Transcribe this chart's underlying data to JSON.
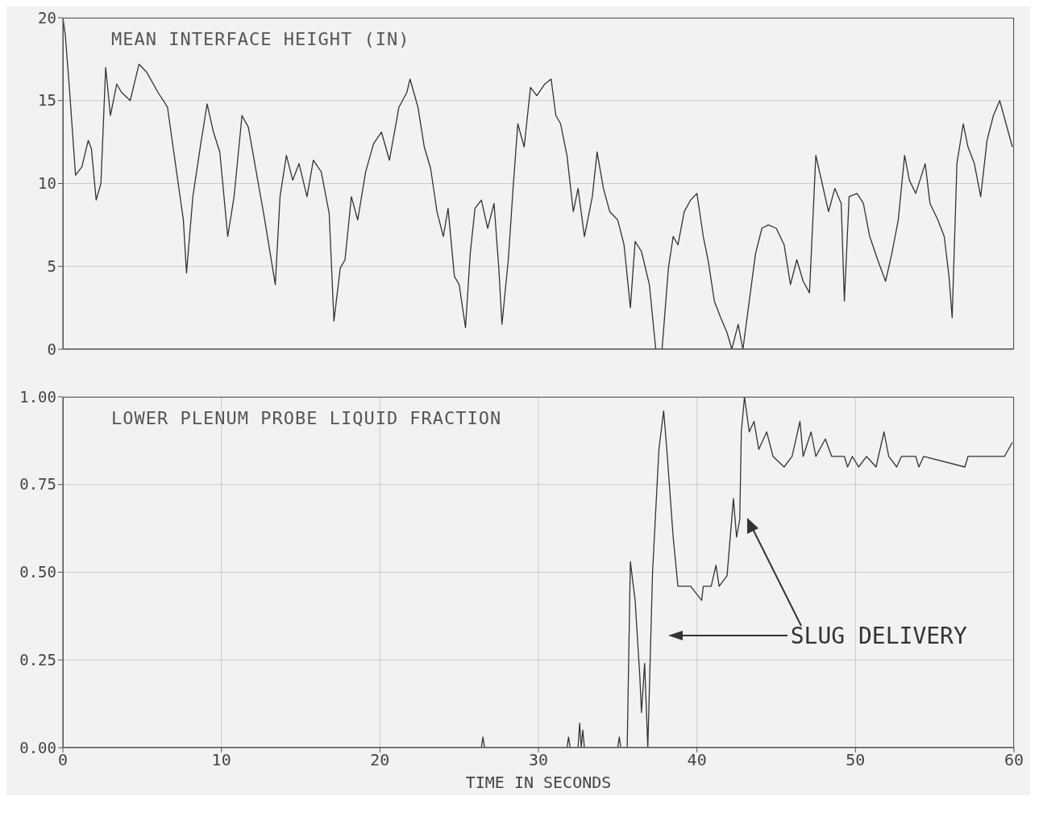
{
  "chart_data": [
    {
      "type": "line",
      "title": "MEAN INTERFACE HEIGHT (IN)",
      "xlim": [
        0,
        60
      ],
      "xticks": [
        0,
        10,
        20,
        30,
        40,
        50,
        60
      ],
      "ylim": [
        0,
        20
      ],
      "yticks": [
        0,
        5,
        10,
        15,
        20
      ],
      "grid": true,
      "tick_labels": "y",
      "line_style": "solid",
      "marker": "none",
      "series": [
        {
          "color": "#333333",
          "x": [
            0,
            0.15,
            0.4,
            0.8,
            1.2,
            1.6,
            1.8,
            2.1,
            2.4,
            2.7,
            3.0,
            3.4,
            3.7,
            4.25,
            4.8,
            5.3,
            6.0,
            6.6,
            7.1,
            7.6,
            7.8,
            8.2,
            8.7,
            9.1,
            9.5,
            9.9,
            10.4,
            10.8,
            11.3,
            11.7,
            12.2,
            12.7,
            13.4,
            13.7,
            14.1,
            14.5,
            14.9,
            15.4,
            15.8,
            16.3,
            16.8,
            17.1,
            17.5,
            17.8,
            18.2,
            18.6,
            19.1,
            19.6,
            20.1,
            20.6,
            21.2,
            21.7,
            21.9,
            22.4,
            22.8,
            23.2,
            23.6,
            24.0,
            24.3,
            24.7,
            25.0,
            25.4,
            25.7,
            26.0,
            26.4,
            26.8,
            27.2,
            27.5,
            27.7,
            28.1,
            28.4,
            28.7,
            29.1,
            29.5,
            29.9,
            30.4,
            30.8,
            31.1,
            31.4,
            31.8,
            32.2,
            32.5,
            32.9,
            33.4,
            33.7,
            34.1,
            34.5,
            35.0,
            35.4,
            35.8,
            36.1,
            36.5,
            37.0,
            37.4,
            37.8,
            38.2,
            38.5,
            38.8,
            39.2,
            39.6,
            40.0,
            40.4,
            40.7,
            41.1,
            41.5,
            41.9,
            42.2,
            42.6,
            42.9,
            43.3,
            43.7,
            44.1,
            44.5,
            45.0,
            45.5,
            45.9,
            46.3,
            46.7,
            47.1,
            47.5,
            47.9,
            48.3,
            48.7,
            49.1,
            49.3,
            49.6,
            50.1,
            50.5,
            50.9,
            51.4,
            51.9,
            52.3,
            52.7,
            53.1,
            53.4,
            53.8,
            54.4,
            54.7,
            55.2,
            55.6,
            55.9,
            56.1,
            56.4,
            56.8,
            57.1,
            57.5,
            57.9,
            58.3,
            58.7,
            59.1,
            59.5,
            59.9
          ],
          "values": [
            20,
            19,
            15.9,
            10.5,
            11,
            12.6,
            12.1,
            9,
            10,
            17,
            14.1,
            16,
            15.5,
            15,
            17.2,
            16.7,
            15.5,
            14.6,
            11.2,
            7.8,
            4.6,
            9.2,
            12.4,
            14.8,
            13.1,
            11.9,
            6.8,
            9.2,
            14.1,
            13.4,
            10.7,
            8,
            3.9,
            9.2,
            11.7,
            10.2,
            11.2,
            9.2,
            11.4,
            10.7,
            8.2,
            1.7,
            4.9,
            5.4,
            9.2,
            7.8,
            10.7,
            12.4,
            13.1,
            11.4,
            14.6,
            15.5,
            16.3,
            14.6,
            12.2,
            10.9,
            8.3,
            6.8,
            8.5,
            4.4,
            3.9,
            1.3,
            5.8,
            8.5,
            9,
            7.3,
            8.8,
            4.9,
            1.5,
            5.4,
            9.7,
            13.6,
            12.2,
            15.8,
            15.3,
            16,
            16.3,
            14.1,
            13.6,
            11.7,
            8.3,
            9.7,
            6.8,
            9.2,
            11.9,
            9.7,
            8.3,
            7.8,
            6.3,
            2.5,
            6.5,
            5.9,
            3.9,
            0,
            0,
            4.9,
            6.8,
            6.3,
            8.3,
            9,
            9.4,
            6.8,
            5.4,
            2.9,
            1.9,
            1,
            0,
            1.5,
            0,
            2.9,
            5.8,
            7.3,
            7.5,
            7.3,
            6.3,
            3.9,
            5.4,
            4.1,
            3.4,
            11.7,
            10,
            8.3,
            9.7,
            8.8,
            2.9,
            9.2,
            9.4,
            8.8,
            6.8,
            5.4,
            4.1,
            5.8,
            7.8,
            11.7,
            10.2,
            9.4,
            11.2,
            8.8,
            7.8,
            6.8,
            4.4,
            1.9,
            11.2,
            13.6,
            12.2,
            11.2,
            9.2,
            12.6,
            14.1,
            15,
            13.6,
            12.2
          ]
        }
      ]
    },
    {
      "type": "line",
      "title": "LOWER PLENUM PROBE LIQUID FRACTION",
      "xlabel": "TIME IN SECONDS",
      "xlim": [
        0,
        60
      ],
      "xticks": [
        0,
        10,
        20,
        30,
        40,
        50,
        60
      ],
      "ylim": [
        0,
        1
      ],
      "yticks": [
        {
          "value": 0,
          "label": "0.00"
        },
        {
          "value": 0.25,
          "label": "0.25"
        },
        {
          "value": 0.5,
          "label": "0.50"
        },
        {
          "value": 0.75,
          "label": "0.75"
        },
        {
          "value": 1,
          "label": "1.00"
        }
      ],
      "grid": true,
      "line_style": "solid",
      "marker": "none",
      "annotations": [
        "SLUG DELIVERY"
      ],
      "series": [
        {
          "color": "#333333",
          "x": [
            0,
            26.4,
            26.5,
            26.6,
            31.8,
            31.9,
            32.0,
            32.5,
            32.6,
            32.7,
            32.8,
            32.9,
            35.0,
            35.1,
            35.2,
            35.6,
            35.8,
            36.1,
            36.4,
            36.5,
            36.7,
            36.9,
            37.2,
            37.6,
            37.9,
            38.1,
            38.5,
            38.8,
            39.6,
            40.3,
            40.4,
            40.9,
            41.2,
            41.4,
            41.9,
            42.3,
            42.5,
            42.7,
            42.8,
            43.0,
            43.3,
            43.6,
            43.9,
            44.4,
            44.8,
            45.5,
            46.0,
            46.5,
            46.7,
            47.2,
            47.5,
            48.1,
            48.5,
            49.3,
            49.5,
            49.8,
            50.2,
            50.7,
            51.3,
            51.8,
            52.1,
            52.6,
            52.9,
            53.8,
            54.0,
            54.3,
            56.9,
            57.1,
            59.4,
            59.9
          ],
          "values": [
            0,
            0,
            0.03,
            0,
            0,
            0.03,
            0,
            0,
            0.07,
            0,
            0.05,
            0,
            0,
            0.03,
            0,
            0,
            0.53,
            0.42,
            0.2,
            0.1,
            0.24,
            0,
            0.5,
            0.85,
            0.96,
            0.85,
            0.6,
            0.46,
            0.46,
            0.42,
            0.46,
            0.46,
            0.52,
            0.46,
            0.49,
            0.71,
            0.6,
            0.65,
            0.9,
            1,
            0.9,
            0.93,
            0.85,
            0.9,
            0.83,
            0.8,
            0.83,
            0.93,
            0.83,
            0.9,
            0.83,
            0.88,
            0.83,
            0.83,
            0.8,
            0.83,
            0.8,
            0.83,
            0.8,
            0.9,
            0.83,
            0.8,
            0.83,
            0.83,
            0.8,
            0.83,
            0.8,
            0.83,
            0.83,
            0.87
          ]
        }
      ]
    }
  ]
}
